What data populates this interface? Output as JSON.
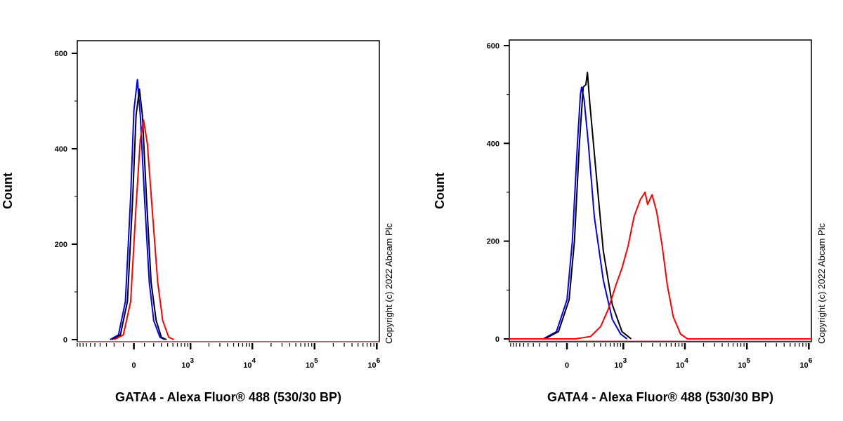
{
  "chart_data": [
    {
      "type": "line",
      "subtype": "flow-cytometry-histogram",
      "xlabel": "GATA4 - Alexa Fluor® 488 (530/30 BP)",
      "ylabel": "Count",
      "xscale": "biexponential",
      "xlim": [
        -1000,
        1100000
      ],
      "ylim": [
        0,
        620
      ],
      "yticks": [
        0,
        200,
        400,
        600
      ],
      "xticks": [
        {
          "value": 0,
          "base": "0",
          "exp": ""
        },
        {
          "value": 1000,
          "base": "10",
          "exp": "3"
        },
        {
          "value": 10000,
          "base": "10",
          "exp": "4"
        },
        {
          "value": 100000,
          "base": "10",
          "exp": "5"
        },
        {
          "value": 1000000,
          "base": "10",
          "exp": "6"
        }
      ],
      "annotation": "Copyright (c) 2022 Abcam Plc",
      "series": [
        {
          "name": "blue",
          "color": "#0000ff",
          "points": [
            [
              -250,
              0
            ],
            [
              -150,
              10
            ],
            [
              -80,
              80
            ],
            [
              -30,
              300
            ],
            [
              0,
              480
            ],
            [
              33,
              545
            ],
            [
              60,
              470
            ],
            [
              100,
              300
            ],
            [
              150,
              120
            ],
            [
              200,
              40
            ],
            [
              280,
              5
            ],
            [
              350,
              0
            ]
          ]
        },
        {
          "name": "black",
          "color": "#000000",
          "points": [
            [
              -230,
              0
            ],
            [
              -130,
              10
            ],
            [
              -60,
              80
            ],
            [
              -10,
              300
            ],
            [
              20,
              470
            ],
            [
              52,
              525
            ],
            [
              80,
              470
            ],
            [
              120,
              300
            ],
            [
              170,
              120
            ],
            [
              230,
              40
            ],
            [
              300,
              5
            ],
            [
              380,
              0
            ]
          ]
        },
        {
          "name": "red",
          "color": "#ff0000",
          "points": [
            [
              -200,
              0
            ],
            [
              -100,
              10
            ],
            [
              -30,
              80
            ],
            [
              20,
              280
            ],
            [
              60,
              420
            ],
            [
              92,
              460
            ],
            [
              130,
              410
            ],
            [
              180,
              280
            ],
            [
              250,
              120
            ],
            [
              320,
              40
            ],
            [
              420,
              5
            ],
            [
              520,
              0
            ]
          ]
        }
      ]
    },
    {
      "type": "line",
      "subtype": "flow-cytometry-histogram",
      "xlabel": "GATA4 - Alexa Fluor® 488 (530/30 BP)",
      "ylabel": "Count",
      "xscale": "biexponential",
      "xlim": [
        -1050,
        1100000
      ],
      "ylim": [
        0,
        630
      ],
      "yticks": [
        0,
        200,
        400,
        600
      ],
      "xticks": [
        {
          "value": 0,
          "base": "0",
          "exp": ""
        },
        {
          "value": 1000,
          "base": "10",
          "exp": "3"
        },
        {
          "value": 10000,
          "base": "10",
          "exp": "4"
        },
        {
          "value": 100000,
          "base": "10",
          "exp": "5"
        },
        {
          "value": 1000000,
          "base": "10",
          "exp": "6"
        }
      ],
      "annotation": "Copyright (c) 2022 Abcam Plc",
      "series": [
        {
          "name": "blue",
          "color": "#0000ff",
          "points": [
            [
              -250,
              0
            ],
            [
              -100,
              15
            ],
            [
              0,
              80
            ],
            [
              50,
              200
            ],
            [
              100,
              400
            ],
            [
              130,
              500
            ],
            [
              143,
              515
            ],
            [
              170,
              490
            ],
            [
              220,
              400
            ],
            [
              300,
              250
            ],
            [
              450,
              120
            ],
            [
              650,
              40
            ],
            [
              900,
              10
            ],
            [
              1150,
              0
            ]
          ]
        },
        {
          "name": "black",
          "color": "#000000",
          "points": [
            [
              -230,
              0
            ],
            [
              -80,
              15
            ],
            [
              20,
              80
            ],
            [
              70,
              200
            ],
            [
              120,
              400
            ],
            [
              160,
              515
            ],
            [
              190,
              520
            ],
            [
              209,
              545
            ],
            [
              240,
              480
            ],
            [
              320,
              350
            ],
            [
              450,
              180
            ],
            [
              650,
              70
            ],
            [
              950,
              15
            ],
            [
              1350,
              0
            ]
          ]
        },
        {
          "name": "red",
          "color": "#ff0000",
          "points": [
            [
              -1050,
              0
            ],
            [
              80,
              0
            ],
            [
              250,
              5
            ],
            [
              400,
              25
            ],
            [
              550,
              60
            ],
            [
              750,
              110
            ],
            [
              950,
              145
            ],
            [
              1200,
              190
            ],
            [
              1500,
              250
            ],
            [
              1900,
              285
            ],
            [
              2270,
              300
            ],
            [
              2500,
              275
            ],
            [
              2950,
              295
            ],
            [
              3500,
              260
            ],
            [
              4300,
              190
            ],
            [
              5200,
              110
            ],
            [
              6500,
              45
            ],
            [
              8500,
              10
            ],
            [
              11000,
              0
            ],
            [
              1100000,
              0
            ]
          ]
        }
      ]
    }
  ]
}
